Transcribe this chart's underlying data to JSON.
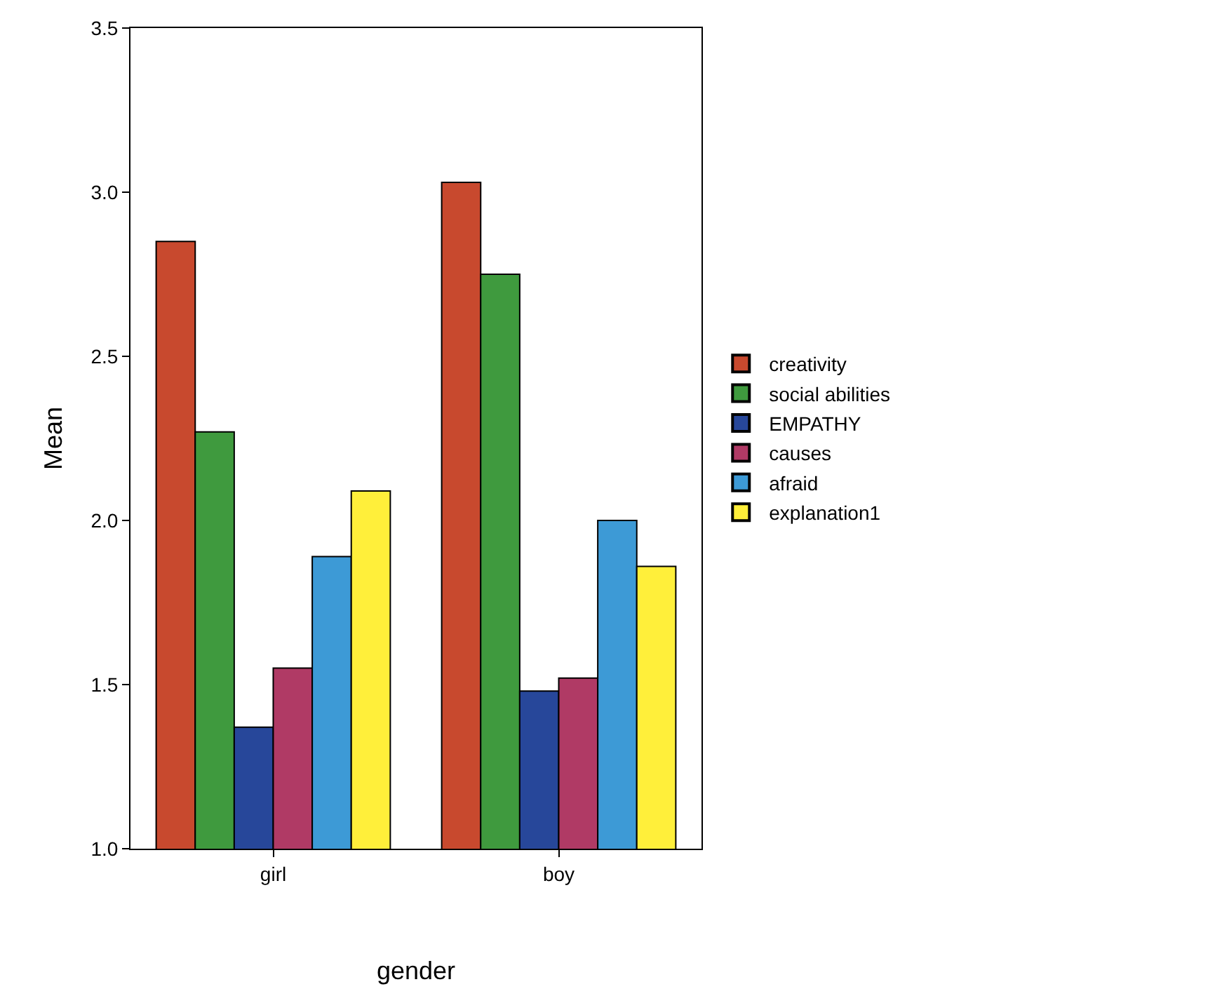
{
  "chart_data": {
    "type": "bar",
    "xlabel": "gender",
    "ylabel": "Mean",
    "categories": [
      "girl",
      "boy"
    ],
    "series": [
      {
        "name": "creativity",
        "color": "#c8492e",
        "values": [
          2.85,
          3.03
        ]
      },
      {
        "name": "social abilities",
        "color": "#3f9a3e",
        "values": [
          2.27,
          2.75
        ]
      },
      {
        "name": "EMPATHY",
        "color": "#27479a",
        "values": [
          1.37,
          1.48
        ]
      },
      {
        "name": "causes",
        "color": "#b03a65",
        "values": [
          1.55,
          1.52
        ]
      },
      {
        "name": "afraid",
        "color": "#3d9ad6",
        "values": [
          1.89,
          2.0
        ]
      },
      {
        "name": "explanation1",
        "color": "#ffef3a",
        "values": [
          2.09,
          1.86
        ]
      }
    ],
    "ylim": [
      1.0,
      3.5
    ],
    "yticks": [
      {
        "value": 1.0,
        "label": "1.0"
      },
      {
        "value": 1.5,
        "label": "1.5"
      },
      {
        "value": 2.0,
        "label": "2.0"
      },
      {
        "value": 2.5,
        "label": "2.5"
      },
      {
        "value": 3.0,
        "label": "3.0"
      },
      {
        "value": 3.5,
        "label": "3.5"
      }
    ],
    "grid": false,
    "legend": "right"
  }
}
